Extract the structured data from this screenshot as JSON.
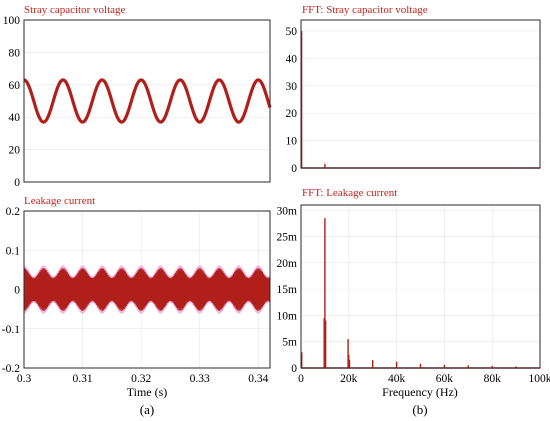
{
  "captions": {
    "a": "(a)",
    "b": "(b)"
  },
  "colors": {
    "trace": "#b01f1a",
    "title": "#c0251e",
    "halo": "#f2a8df"
  },
  "chart_data": [
    {
      "id": "stray-voltage",
      "type": "line",
      "title": "Stray capacitor voltage",
      "xlabel": "",
      "ylabel": "",
      "xlim": [
        0.3,
        0.342
      ],
      "ylim": [
        0,
        100
      ],
      "yticks": [
        "0",
        "20",
        "40",
        "60",
        "80",
        "100"
      ],
      "series": [
        {
          "frequency_hz": 150,
          "offset": 50,
          "amplitude": 13,
          "phase_deg": 90
        }
      ]
    },
    {
      "id": "leakage-current",
      "type": "line",
      "title": "Leakage current",
      "xlabel": "Time (s)",
      "ylabel": "",
      "xlim": [
        0.3,
        0.342
      ],
      "ylim": [
        -0.2,
        0.2
      ],
      "xticks": [
        "0.3",
        "0.31",
        "0.32",
        "0.33",
        "0.34"
      ],
      "yticks": [
        "-0.2",
        "-0.1",
        "0",
        "0.1",
        "0.2"
      ],
      "series": [
        {
          "envelope_frequency_hz": 300,
          "envelope_min": 0.03,
          "envelope_max": 0.055
        }
      ]
    },
    {
      "id": "fft-stray-voltage",
      "type": "bar",
      "title": "FFT: Stray capacitor voltage",
      "xlabel": "",
      "ylabel": "",
      "xlim": [
        0,
        100000
      ],
      "ylim": [
        0,
        54
      ],
      "yticks": [
        "0",
        "10",
        "20",
        "30",
        "40",
        "50"
      ],
      "x": [
        0,
        150,
        10000
      ],
      "values": [
        50,
        13,
        1.5
      ]
    },
    {
      "id": "fft-leakage-current",
      "type": "bar",
      "title": "FFT: Leakage current",
      "xlabel": "Frequency (Hz)",
      "ylabel": "",
      "xlim": [
        0,
        100000
      ],
      "ylim": [
        0,
        0.031
      ],
      "xticks": [
        "0",
        "20k",
        "40k",
        "60k",
        "80k",
        "100k"
      ],
      "yticks": [
        "0",
        "5m",
        "10m",
        "15m",
        "20m",
        "25m",
        "30m"
      ],
      "x": [
        300,
        9700,
        10000,
        10300,
        19700,
        20000,
        20300,
        30000,
        40000,
        50000,
        60000,
        70000,
        80000,
        90000
      ],
      "values": [
        0.003,
        0.0095,
        0.0285,
        0.009,
        0.0055,
        0.0025,
        0.0015,
        0.0015,
        0.0012,
        0.0008,
        0.0006,
        0.0005,
        0.0004,
        0.0003
      ]
    }
  ]
}
